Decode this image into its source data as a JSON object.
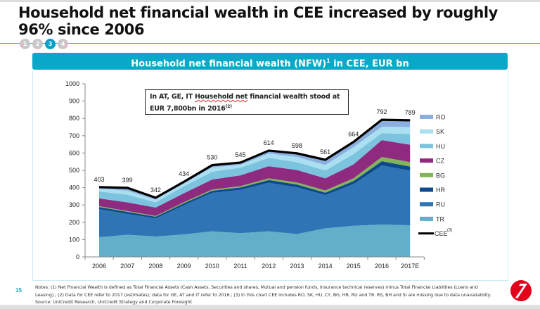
{
  "slide": {
    "title": "Household net financial wealth in CEE increased by roughly 96% since 2006",
    "steps": [
      "1",
      "2",
      "3",
      "4"
    ],
    "active_step": "3",
    "page_number": "15",
    "panel_title": "Household net financial wealth (NFW)",
    "panel_title_sup": "1",
    "panel_title_suffix": " in CEE, EUR bn",
    "annotation_part1": "In AT, GE, IT ",
    "annotation_part2": "Household net",
    "annotation_part3": " financial wealth stood at EUR 7,800bn in 2016",
    "annotation_sup": "(2)",
    "notes": "Notes: (1) Net Financial Wealth is defined as Total Financial Assets (Cash Assets, Securities and shares, Mutual and pension funds, Insurance technical reserves) minus Total Financial Liabilities (Loans and Leasing).; (2) Data for CEE refer to 2017 (estimates); data for GE, AT and IT refer to 2016.; (3) In this chart CEE includes RO, SK, HU, CY, BG, HR, RU and TR. RS, BH and SI are missing due to data unavailability. Source: UniCredit Research, UniCredit Strategy and Corporate Foresight",
    "colors": {
      "accent": "#0aa8c8",
      "logo_red": "#e2001a"
    }
  },
  "chart_data": {
    "type": "area",
    "stacked": true,
    "title": "Household net financial wealth (NFW)1 in CEE, EUR bn",
    "xlabel": "",
    "ylabel": "",
    "ylim": [
      0,
      1000
    ],
    "yticks": [
      "0",
      "100",
      "200",
      "300",
      "400",
      "500",
      "600",
      "700",
      "800",
      "900",
      "1000"
    ],
    "categories": [
      "2006",
      "2007",
      "2008",
      "2009",
      "2010",
      "2011",
      "2012",
      "2013",
      "2014",
      "2015",
      "2016",
      "2017E"
    ],
    "legend_position": "right",
    "series": [
      {
        "name": "TR",
        "color": "#62afc9",
        "values": [
          114,
          128,
          118,
          130,
          148,
          137,
          148,
          132,
          165,
          180,
          187,
          183
        ]
      },
      {
        "name": "RU",
        "color": "#2f74b5",
        "values": [
          162,
          120,
          104,
          168,
          222,
          250,
          280,
          270,
          192,
          240,
          341,
          315
        ]
      },
      {
        "name": "HR",
        "color": "#0d4a8a",
        "values": [
          12,
          12,
          10,
          12,
          12,
          14,
          16,
          16,
          14,
          18,
          25,
          24
        ]
      },
      {
        "name": "BG",
        "color": "#82b55a",
        "values": [
          5,
          5,
          5,
          6,
          7,
          8,
          10,
          12,
          13,
          16,
          24,
          26
        ]
      },
      {
        "name": "CZ",
        "color": "#8e2b7e",
        "values": [
          45,
          50,
          48,
          52,
          58,
          62,
          70,
          72,
          70,
          80,
          98,
          100
        ]
      },
      {
        "name": "HU",
        "color": "#7cc3dd",
        "values": [
          40,
          45,
          30,
          40,
          45,
          45,
          48,
          45,
          45,
          60,
          40,
          62
        ]
      },
      {
        "name": "SK",
        "color": "#a9dff0",
        "values": [
          18,
          22,
          16,
          16,
          25,
          16,
          25,
          30,
          32,
          40,
          37,
          40
        ]
      },
      {
        "name": "RO",
        "color": "#8aaede",
        "values": [
          7,
          17,
          11,
          10,
          13,
          13,
          17,
          21,
          30,
          30,
          40,
          39
        ]
      }
    ],
    "total_line": {
      "name": "CEE",
      "name_sup": "(3)",
      "color": "#000000",
      "values": [
        403,
        399,
        342,
        434,
        530,
        545,
        614,
        598,
        561,
        664,
        792,
        789
      ],
      "labels": [
        "403",
        "399",
        "342",
        "434",
        "530",
        "545",
        "614",
        "598",
        "561",
        "664",
        "792",
        "789"
      ]
    }
  }
}
